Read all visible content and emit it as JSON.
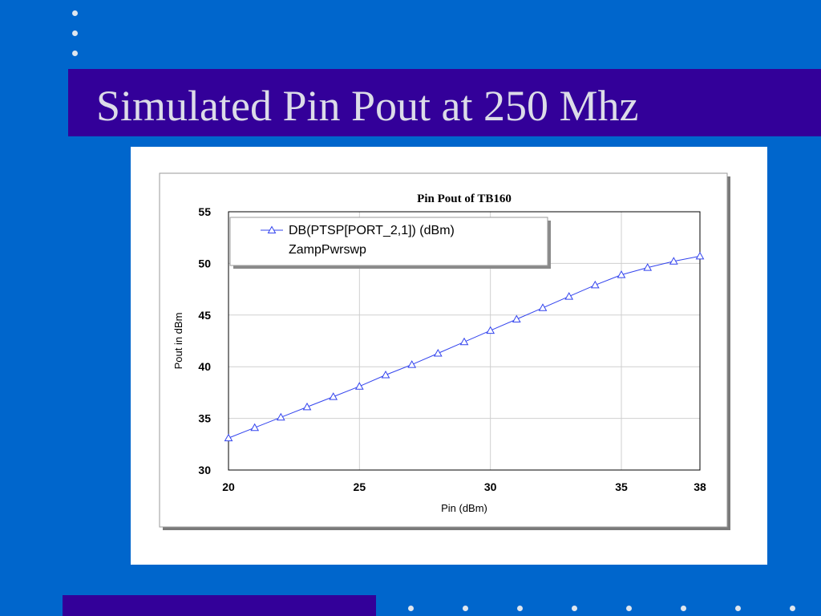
{
  "slide": {
    "title": "Simulated Pin Pout at 250 Mhz"
  },
  "colors": {
    "background": "#0066cc",
    "title_band": "#330099",
    "title_text": "#dcdce8",
    "series_line": "#3344ee"
  },
  "chart_data": {
    "type": "line",
    "title": "Pin Pout of TB160",
    "xlabel": "Pin (dBm)",
    "ylabel": "Pout in dBm",
    "xlim": [
      20,
      38
    ],
    "ylim": [
      30,
      55
    ],
    "x_ticks": [
      20,
      25,
      30,
      35,
      38
    ],
    "y_ticks": [
      30,
      35,
      40,
      45,
      50,
      55
    ],
    "grid": true,
    "legend_placement": "top-left",
    "legend": {
      "line1": "DB(PTSP[PORT_2,1]) (dBm)",
      "line2": "ZampPwrswp"
    },
    "series": [
      {
        "name": "DB(PTSP[PORT_2,1]) (dBm)",
        "marker": "triangle",
        "x": [
          20,
          21,
          22,
          23,
          24,
          25,
          26,
          27,
          28,
          29,
          30,
          31,
          32,
          33,
          34,
          35,
          36,
          37,
          38
        ],
        "y": [
          33.1,
          34.1,
          35.1,
          36.1,
          37.1,
          38.1,
          39.2,
          40.2,
          41.3,
          42.4,
          43.5,
          44.6,
          45.7,
          46.8,
          47.9,
          48.9,
          49.6,
          50.2,
          50.7
        ]
      }
    ]
  }
}
